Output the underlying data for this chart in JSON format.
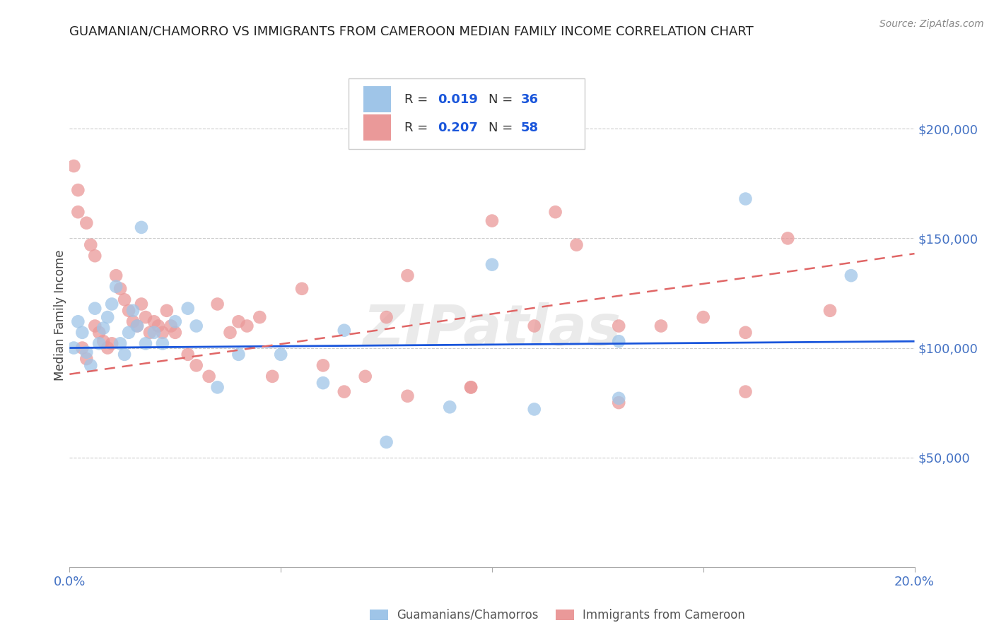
{
  "title": "GUAMANIAN/CHAMORRO VS IMMIGRANTS FROM CAMEROON MEDIAN FAMILY INCOME CORRELATION CHART",
  "source": "Source: ZipAtlas.com",
  "ylabel": "Median Family Income",
  "watermark": "ZIPatlas",
  "xlim": [
    0.0,
    0.2
  ],
  "ylim": [
    0,
    230000
  ],
  "yticks": [
    50000,
    100000,
    150000,
    200000
  ],
  "ytick_labels": [
    "$50,000",
    "$100,000",
    "$150,000",
    "$200,000"
  ],
  "xticks": [
    0.0,
    0.05,
    0.1,
    0.15,
    0.2
  ],
  "xtick_labels": [
    "0.0%",
    "",
    "",
    "",
    "20.0%"
  ],
  "blue_color": "#9fc5e8",
  "pink_color": "#ea9999",
  "blue_line_color": "#1a56db",
  "pink_line_color": "#e06666",
  "title_color": "#222222",
  "axis_label_color": "#444444",
  "tick_color": "#4472c4",
  "grid_color": "#cccccc",
  "legend_text_color": "#333333",
  "legend_value_color": "#1a56db",
  "blue_scatter_x": [
    0.001,
    0.002,
    0.003,
    0.004,
    0.005,
    0.006,
    0.007,
    0.008,
    0.009,
    0.01,
    0.011,
    0.012,
    0.013,
    0.014,
    0.015,
    0.016,
    0.017,
    0.018,
    0.02,
    0.022,
    0.025,
    0.028,
    0.03,
    0.035,
    0.04,
    0.05,
    0.06,
    0.065,
    0.075,
    0.1,
    0.11,
    0.13,
    0.16,
    0.185,
    0.13,
    0.09
  ],
  "blue_scatter_y": [
    100000,
    112000,
    107000,
    98000,
    92000,
    118000,
    102000,
    109000,
    114000,
    120000,
    128000,
    102000,
    97000,
    107000,
    117000,
    110000,
    155000,
    102000,
    107000,
    102000,
    112000,
    118000,
    110000,
    82000,
    97000,
    97000,
    84000,
    108000,
    57000,
    138000,
    72000,
    77000,
    168000,
    133000,
    103000,
    73000
  ],
  "pink_scatter_x": [
    0.001,
    0.002,
    0.002,
    0.003,
    0.004,
    0.004,
    0.005,
    0.006,
    0.006,
    0.007,
    0.008,
    0.009,
    0.01,
    0.011,
    0.012,
    0.013,
    0.014,
    0.015,
    0.016,
    0.017,
    0.018,
    0.019,
    0.02,
    0.021,
    0.022,
    0.023,
    0.024,
    0.025,
    0.028,
    0.03,
    0.033,
    0.035,
    0.038,
    0.04,
    0.042,
    0.045,
    0.048,
    0.055,
    0.06,
    0.07,
    0.075,
    0.08,
    0.095,
    0.1,
    0.11,
    0.115,
    0.12,
    0.13,
    0.14,
    0.15,
    0.16,
    0.17,
    0.18,
    0.16,
    0.13,
    0.095,
    0.08,
    0.065
  ],
  "pink_scatter_y": [
    183000,
    172000,
    162000,
    100000,
    157000,
    95000,
    147000,
    142000,
    110000,
    107000,
    103000,
    100000,
    102000,
    133000,
    127000,
    122000,
    117000,
    112000,
    110000,
    120000,
    114000,
    107000,
    112000,
    110000,
    107000,
    117000,
    110000,
    107000,
    97000,
    92000,
    87000,
    120000,
    107000,
    112000,
    110000,
    114000,
    87000,
    127000,
    92000,
    87000,
    114000,
    133000,
    82000,
    158000,
    110000,
    162000,
    147000,
    110000,
    110000,
    114000,
    107000,
    150000,
    117000,
    80000,
    75000,
    82000,
    78000,
    80000
  ],
  "blue_trend_x": [
    0.0,
    0.2
  ],
  "blue_trend_y": [
    100000,
    103000
  ],
  "pink_trend_x": [
    0.0,
    0.2
  ],
  "pink_trend_y": [
    88000,
    143000
  ]
}
